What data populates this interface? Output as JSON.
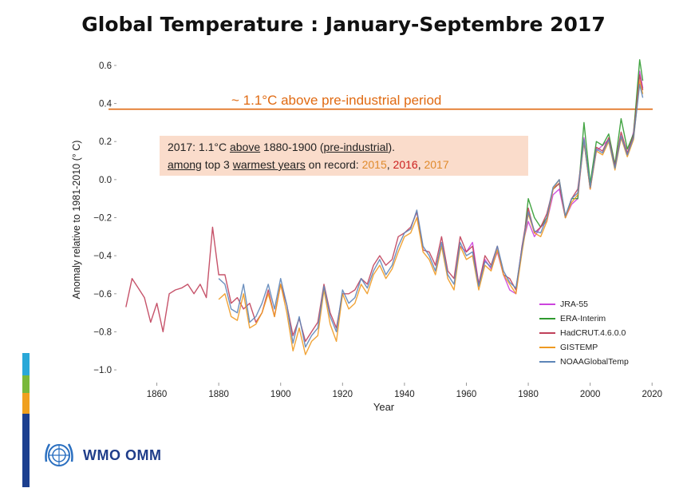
{
  "title": "Global Temperature : January-Septembre 2017",
  "annotation": {
    "line1_prefix": "2017: 1.1°C ",
    "line1_above": "above",
    "line1_mid": " 1880-1900 (",
    "line1_pre": "pre-industrial",
    "line1_end": ").",
    "line2_among": "among",
    "line2_mid": " top 3 ",
    "line2_warmest": "warmest years",
    "line2_tail": " on record: ",
    "y2015": "2015",
    "sep1": ", ",
    "y2016": "2016",
    "sep2": ", ",
    "y2017": "2017"
  },
  "reference_label": "~ 1.1°C above pre-industrial period",
  "logo_text": "WMO OMM",
  "colors": {
    "JRA-55": "#cc44dd",
    "ERA-Interim": "#2f9a2f",
    "HadCRUT.4.6.0.0": "#c0405a",
    "GISTEMP": "#ef9a22",
    "NOAAGlobalTemp": "#5d85b8",
    "reference_line": "#e06a12",
    "stripes": [
      "#29a8d8",
      "#79b83a",
      "#f0a01e",
      "#1c3f8f"
    ]
  },
  "chart_data": {
    "type": "line",
    "title": "Global Temperature : January-Septembre 2017",
    "xlabel": "Year",
    "ylabel": "Anomaly relative to 1981-2010 (° C)",
    "xlim": [
      1848,
      2022
    ],
    "ylim": [
      -1.05,
      0.65
    ],
    "xticks": [
      1860,
      1880,
      1900,
      1920,
      1940,
      1960,
      1980,
      2000,
      2020
    ],
    "yticks": [
      0.6,
      0.4,
      0.2,
      0.0,
      -0.2,
      -0.4,
      -0.6,
      -0.8,
      -1.0
    ],
    "ytick_labels": [
      "0.6",
      "0.4",
      "0.2",
      "0.0",
      "−0.2",
      "−0.4",
      "−0.6",
      "−0.8",
      "−1.0"
    ],
    "reference_line": 0.37,
    "legend_position": "lower-right",
    "grid": false,
    "series": [
      {
        "name": "JRA-55",
        "x": [
          1958,
          1960,
          1962,
          1964,
          1966,
          1968,
          1970,
          1972,
          1974,
          1976,
          1978,
          1980,
          1982,
          1984,
          1986,
          1988,
          1990,
          1992,
          1994,
          1996,
          1998,
          2000,
          2002,
          2004,
          2006,
          2008,
          2010,
          2012,
          2014,
          2016,
          2017
        ],
        "y": [
          -0.35,
          -0.38,
          -0.33,
          -0.55,
          -0.42,
          -0.47,
          -0.38,
          -0.5,
          -0.58,
          -0.6,
          -0.35,
          -0.22,
          -0.3,
          -0.25,
          -0.22,
          -0.08,
          -0.05,
          -0.2,
          -0.13,
          -0.1,
          0.22,
          -0.05,
          0.15,
          0.18,
          0.21,
          0.07,
          0.22,
          0.13,
          0.25,
          0.57,
          0.48
        ]
      },
      {
        "name": "ERA-Interim",
        "x": [
          1979,
          1980,
          1982,
          1984,
          1986,
          1988,
          1990,
          1992,
          1994,
          1996,
          1998,
          2000,
          2002,
          2004,
          2006,
          2008,
          2010,
          2012,
          2014,
          2016,
          2017
        ],
        "y": [
          -0.25,
          -0.1,
          -0.2,
          -0.25,
          -0.2,
          -0.05,
          -0.02,
          -0.2,
          -0.1,
          -0.1,
          0.3,
          -0.02,
          0.2,
          0.18,
          0.24,
          0.08,
          0.32,
          0.16,
          0.24,
          0.63,
          0.52
        ]
      },
      {
        "name": "HadCRUT.4.6.0.0",
        "x": [
          1850,
          1852,
          1854,
          1856,
          1858,
          1860,
          1862,
          1864,
          1866,
          1868,
          1870,
          1872,
          1874,
          1876,
          1878,
          1880,
          1882,
          1884,
          1886,
          1888,
          1890,
          1892,
          1894,
          1896,
          1898,
          1900,
          1902,
          1904,
          1906,
          1908,
          1910,
          1912,
          1914,
          1916,
          1918,
          1920,
          1922,
          1924,
          1926,
          1928,
          1930,
          1932,
          1934,
          1936,
          1938,
          1940,
          1942,
          1944,
          1946,
          1948,
          1950,
          1952,
          1954,
          1956,
          1958,
          1960,
          1962,
          1964,
          1966,
          1968,
          1970,
          1972,
          1974,
          1976,
          1978,
          1980,
          1982,
          1984,
          1986,
          1988,
          1990,
          1992,
          1994,
          1996,
          1998,
          2000,
          2002,
          2004,
          2006,
          2008,
          2010,
          2012,
          2014,
          2016,
          2017
        ],
        "y": [
          -0.67,
          -0.52,
          -0.57,
          -0.62,
          -0.75,
          -0.65,
          -0.8,
          -0.6,
          -0.58,
          -0.57,
          -0.55,
          -0.6,
          -0.55,
          -0.62,
          -0.25,
          -0.5,
          -0.5,
          -0.65,
          -0.62,
          -0.68,
          -0.65,
          -0.75,
          -0.7,
          -0.58,
          -0.72,
          -0.55,
          -0.66,
          -0.82,
          -0.73,
          -0.85,
          -0.8,
          -0.75,
          -0.55,
          -0.7,
          -0.78,
          -0.6,
          -0.6,
          -0.58,
          -0.52,
          -0.55,
          -0.45,
          -0.4,
          -0.45,
          -0.42,
          -0.3,
          -0.28,
          -0.25,
          -0.17,
          -0.37,
          -0.38,
          -0.45,
          -0.3,
          -0.48,
          -0.52,
          -0.3,
          -0.38,
          -0.35,
          -0.55,
          -0.4,
          -0.45,
          -0.35,
          -0.5,
          -0.52,
          -0.58,
          -0.35,
          -0.15,
          -0.28,
          -0.25,
          -0.18,
          -0.05,
          -0.02,
          -0.2,
          -0.1,
          -0.05,
          0.2,
          -0.05,
          0.17,
          0.15,
          0.22,
          0.07,
          0.25,
          0.14,
          0.23,
          0.55,
          0.47
        ]
      },
      {
        "name": "GISTEMP",
        "x": [
          1880,
          1882,
          1884,
          1886,
          1888,
          1890,
          1892,
          1894,
          1896,
          1898,
          1900,
          1902,
          1904,
          1906,
          1908,
          1910,
          1912,
          1914,
          1916,
          1918,
          1920,
          1922,
          1924,
          1926,
          1928,
          1930,
          1932,
          1934,
          1936,
          1938,
          1940,
          1942,
          1944,
          1946,
          1948,
          1950,
          1952,
          1954,
          1956,
          1958,
          1960,
          1962,
          1964,
          1966,
          1968,
          1970,
          1972,
          1974,
          1976,
          1978,
          1980,
          1982,
          1984,
          1986,
          1988,
          1990,
          1992,
          1994,
          1996,
          1998,
          2000,
          2002,
          2004,
          2006,
          2008,
          2010,
          2012,
          2014,
          2016,
          2017
        ],
        "y": [
          -0.63,
          -0.6,
          -0.72,
          -0.74,
          -0.6,
          -0.78,
          -0.76,
          -0.7,
          -0.6,
          -0.72,
          -0.55,
          -0.7,
          -0.9,
          -0.78,
          -0.92,
          -0.85,
          -0.82,
          -0.58,
          -0.76,
          -0.85,
          -0.6,
          -0.68,
          -0.65,
          -0.55,
          -0.6,
          -0.5,
          -0.45,
          -0.52,
          -0.47,
          -0.38,
          -0.3,
          -0.28,
          -0.2,
          -0.38,
          -0.42,
          -0.5,
          -0.35,
          -0.52,
          -0.58,
          -0.35,
          -0.42,
          -0.4,
          -0.58,
          -0.45,
          -0.48,
          -0.37,
          -0.5,
          -0.55,
          -0.6,
          -0.38,
          -0.18,
          -0.28,
          -0.3,
          -0.22,
          -0.05,
          0.0,
          -0.2,
          -0.12,
          -0.08,
          0.2,
          -0.05,
          0.15,
          0.13,
          0.2,
          0.05,
          0.22,
          0.12,
          0.21,
          0.52,
          0.45
        ]
      },
      {
        "name": "NOAAGlobalTemp",
        "x": [
          1880,
          1882,
          1884,
          1886,
          1888,
          1890,
          1892,
          1894,
          1896,
          1898,
          1900,
          1902,
          1904,
          1906,
          1908,
          1910,
          1912,
          1914,
          1916,
          1918,
          1920,
          1922,
          1924,
          1926,
          1928,
          1930,
          1932,
          1934,
          1936,
          1938,
          1940,
          1942,
          1944,
          1946,
          1948,
          1950,
          1952,
          1954,
          1956,
          1958,
          1960,
          1962,
          1964,
          1966,
          1968,
          1970,
          1972,
          1974,
          1976,
          1978,
          1980,
          1982,
          1984,
          1986,
          1988,
          1990,
          1992,
          1994,
          1996,
          1998,
          2000,
          2002,
          2004,
          2006,
          2008,
          2010,
          2012,
          2014,
          2016,
          2017
        ],
        "y": [
          -0.52,
          -0.55,
          -0.68,
          -0.7,
          -0.55,
          -0.75,
          -0.72,
          -0.65,
          -0.55,
          -0.68,
          -0.52,
          -0.66,
          -0.86,
          -0.72,
          -0.88,
          -0.82,
          -0.78,
          -0.56,
          -0.72,
          -0.8,
          -0.58,
          -0.65,
          -0.62,
          -0.52,
          -0.57,
          -0.48,
          -0.42,
          -0.5,
          -0.45,
          -0.35,
          -0.28,
          -0.26,
          -0.16,
          -0.35,
          -0.4,
          -0.48,
          -0.33,
          -0.5,
          -0.55,
          -0.33,
          -0.4,
          -0.38,
          -0.56,
          -0.43,
          -0.46,
          -0.35,
          -0.48,
          -0.54,
          -0.57,
          -0.36,
          -0.17,
          -0.27,
          -0.28,
          -0.2,
          -0.04,
          0.0,
          -0.19,
          -0.1,
          -0.07,
          0.21,
          -0.04,
          0.16,
          0.14,
          0.21,
          0.06,
          0.23,
          0.13,
          0.22,
          0.5,
          0.43
        ]
      }
    ]
  }
}
